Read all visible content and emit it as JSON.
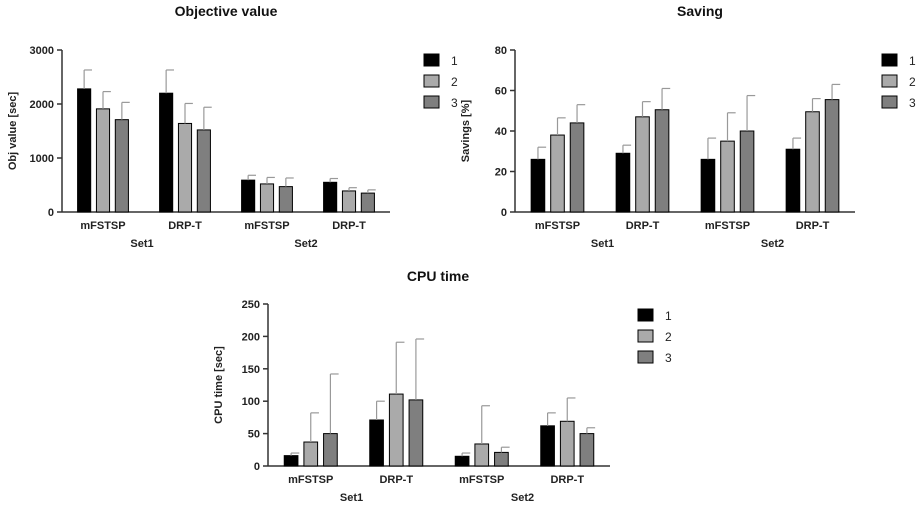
{
  "colors": {
    "series_1": "#000000",
    "series_2": "#aaaaaa",
    "series_3": "#7f7f7f",
    "errorbar": "#999999",
    "axis": "#333333"
  },
  "chart_data": [
    {
      "type": "bar",
      "title": "Objective value",
      "ylabel": "Obj value [sec]",
      "xlabel": "",
      "ylim": [
        0,
        3000
      ],
      "yticks": [
        0,
        1000,
        2000,
        3000
      ],
      "categories": [
        "mFSTSP",
        "DRP-T",
        "mFSTSP",
        "DRP-T"
      ],
      "groups": [
        {
          "label": "Set1",
          "categories": [
            0,
            1
          ]
        },
        {
          "label": "Set2",
          "categories": [
            2,
            3
          ]
        }
      ],
      "series": [
        {
          "name": "1",
          "values": [
            2280,
            2200,
            590,
            550
          ],
          "errors": [
            350,
            430,
            90,
            70
          ]
        },
        {
          "name": "2",
          "values": [
            1910,
            1640,
            520,
            390
          ],
          "errors": [
            320,
            370,
            120,
            60
          ]
        },
        {
          "name": "3",
          "values": [
            1710,
            1520,
            470,
            350
          ],
          "errors": [
            320,
            420,
            160,
            60
          ]
        }
      ],
      "legend": "right",
      "grid": false
    },
    {
      "type": "bar",
      "title": "Saving",
      "ylabel": "Savings [%]",
      "xlabel": "",
      "ylim": [
        0,
        80
      ],
      "yticks": [
        0,
        20,
        40,
        60,
        80
      ],
      "categories": [
        "mFSTSP",
        "DRP-T",
        "mFSTSP",
        "DRP-T"
      ],
      "groups": [
        {
          "label": "Set1",
          "categories": [
            0,
            1
          ]
        },
        {
          "label": "Set2",
          "categories": [
            2,
            3
          ]
        }
      ],
      "series": [
        {
          "name": "1",
          "values": [
            26,
            29,
            26,
            31
          ],
          "errors": [
            6,
            4,
            10.5,
            5.5
          ]
        },
        {
          "name": "2",
          "values": [
            38,
            47,
            35,
            49.5
          ],
          "errors": [
            8.5,
            7.5,
            14,
            6.5
          ]
        },
        {
          "name": "3",
          "values": [
            44,
            50.5,
            40,
            55.5
          ],
          "errors": [
            9,
            10.5,
            17.5,
            7.5
          ]
        }
      ],
      "legend": "right",
      "grid": false
    },
    {
      "type": "bar",
      "title": "CPU time",
      "ylabel": "CPU time [sec]",
      "xlabel": "",
      "ylim": [
        0,
        250
      ],
      "yticks": [
        0,
        50,
        100,
        150,
        200,
        250
      ],
      "categories": [
        "mFSTSP",
        "DRP-T",
        "mFSTSP",
        "DRP-T"
      ],
      "groups": [
        {
          "label": "Set1",
          "categories": [
            0,
            1
          ]
        },
        {
          "label": "Set2",
          "categories": [
            2,
            3
          ]
        }
      ],
      "series": [
        {
          "name": "1",
          "values": [
            16,
            71,
            15,
            62
          ],
          "errors": [
            4,
            29,
            5,
            20
          ]
        },
        {
          "name": "2",
          "values": [
            37,
            111,
            34,
            69
          ],
          "errors": [
            45,
            80,
            59,
            36
          ]
        },
        {
          "name": "3",
          "values": [
            50,
            102,
            21,
            50
          ],
          "errors": [
            92,
            94,
            8,
            9
          ]
        }
      ],
      "legend": "right",
      "grid": false
    }
  ]
}
